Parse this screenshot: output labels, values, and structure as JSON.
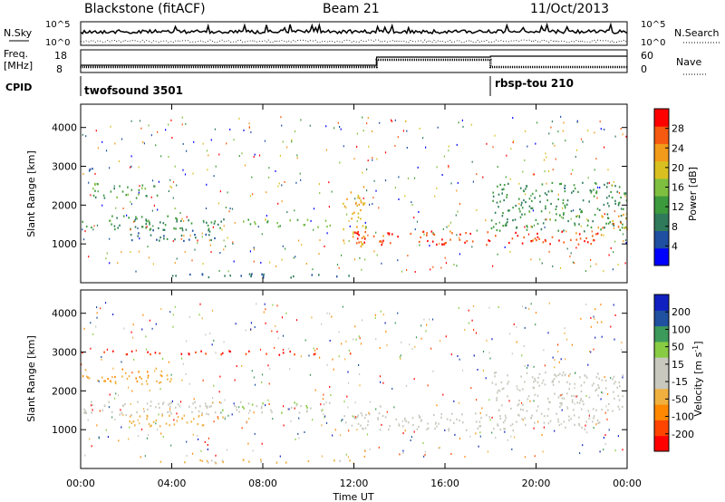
{
  "header": {
    "station": "Blackstone (fitACF)",
    "beam": "Beam 21",
    "date": "11/Oct/2013"
  },
  "top_panels": {
    "nsky_label": "N.Sky",
    "nsearch_label": "N.Search",
    "noise_ticks": [
      "10^5",
      "10^0"
    ],
    "freq_label": "Freq.",
    "freq_unit": "[MHz]",
    "freq_ticks": [
      "18",
      "8"
    ],
    "nave_label": "Nave",
    "nave_ticks": [
      "60",
      "0"
    ],
    "cpid_label": "CPID",
    "cpid_programs": [
      {
        "name": "twofsound 3501",
        "start_hour": 0
      },
      {
        "name": "rbsp-tou 210",
        "start_hour": 18
      }
    ]
  },
  "chart_data": [
    {
      "type": "heatmap",
      "panel": "power",
      "ylabel": "Slant Range [km]",
      "xlabel": "Time UT",
      "xlim": [
        0,
        24
      ],
      "ylim": [
        0,
        4600
      ],
      "yticks": [
        "1000",
        "2000",
        "3000",
        "4000"
      ],
      "colorbar": {
        "label": "Power [dB]",
        "ticks": [
          "28",
          "24",
          "20",
          "16",
          "12",
          "8",
          "4"
        ],
        "range": [
          0,
          30
        ],
        "colors": [
          "#0000ff",
          "#1f4fa0",
          "#2f7a5a",
          "#3c9a3c",
          "#7fbf3f",
          "#d9c020",
          "#f29a1a",
          "#f55a10",
          "#ff0000"
        ]
      },
      "bands": [
        {
          "t0": 0.0,
          "t1": 6.5,
          "r0": 1400,
          "r1": 1750,
          "value": 10
        },
        {
          "t0": 2.0,
          "t1": 6.0,
          "r0": 1100,
          "r1": 1400,
          "value": 8
        },
        {
          "t0": 0.5,
          "t1": 3.5,
          "r0": 2200,
          "r1": 2600,
          "value": 12
        },
        {
          "t0": 0.0,
          "t1": 1.0,
          "r0": 2900,
          "r1": 3000,
          "value": 6
        },
        {
          "t0": 7.0,
          "t1": 11.0,
          "r0": 1450,
          "r1": 1650,
          "value": 14
        },
        {
          "t0": 11.5,
          "t1": 12.5,
          "r0": 900,
          "r1": 2500,
          "value": 20
        },
        {
          "t0": 12.0,
          "t1": 23.0,
          "r0": 1000,
          "r1": 1350,
          "value": 26
        },
        {
          "t0": 18.0,
          "t1": 24.0,
          "r0": 1350,
          "r1": 2600,
          "value": 10
        },
        {
          "t0": 22.5,
          "t1": 24.0,
          "r0": 1400,
          "r1": 1800,
          "value": 22
        },
        {
          "t0": 3.0,
          "t1": 12.0,
          "r0": 150,
          "r1": 250,
          "value": 6
        }
      ]
    },
    {
      "type": "heatmap",
      "panel": "velocity",
      "ylabel": "Slant Range [km]",
      "xlabel": "Time UT",
      "xlim": [
        0,
        24
      ],
      "ylim": [
        0,
        4600
      ],
      "yticks": [
        "1000",
        "2000",
        "3000",
        "4000"
      ],
      "colorbar": {
        "label": "Velocity [m s^-1]",
        "ticks": [
          "200",
          "100",
          "50",
          "15",
          "-15",
          "-50",
          "-100",
          "-200"
        ],
        "range": [
          -250,
          250
        ],
        "colors": [
          "#ff0000",
          "#ff4400",
          "#ff8800",
          "#f0b040",
          "#c8c8be",
          "#c8c8be",
          "#88cc44",
          "#3c9a5a",
          "#2050a0",
          "#1020c0"
        ]
      },
      "bands": [
        {
          "t0": 0.0,
          "t1": 6.0,
          "r0": 1400,
          "r1": 1750,
          "value": 0
        },
        {
          "t0": 2.0,
          "t1": 6.5,
          "r0": 1100,
          "r1": 1400,
          "value": -70
        },
        {
          "t0": 0.0,
          "t1": 4.0,
          "r0": 2200,
          "r1": 2600,
          "value": -90
        },
        {
          "t0": 5.0,
          "t1": 11.0,
          "r0": 1450,
          "r1": 1750,
          "value": 40
        },
        {
          "t0": 11.5,
          "t1": 23.0,
          "r0": 1000,
          "r1": 1450,
          "value": 0
        },
        {
          "t0": 18.0,
          "t1": 24.0,
          "r0": 1500,
          "r1": 2500,
          "value": 0
        },
        {
          "t0": 0.0,
          "t1": 12.0,
          "r0": 2950,
          "r1": 3050,
          "value": -200
        },
        {
          "t0": 3.0,
          "t1": 12.0,
          "r0": 150,
          "r1": 250,
          "value": -60
        }
      ]
    }
  ],
  "time_axis": {
    "ticks": [
      "00:00",
      "04:00",
      "08:00",
      "12:00",
      "16:00",
      "20:00",
      "00:00"
    ],
    "label": "Time UT"
  }
}
